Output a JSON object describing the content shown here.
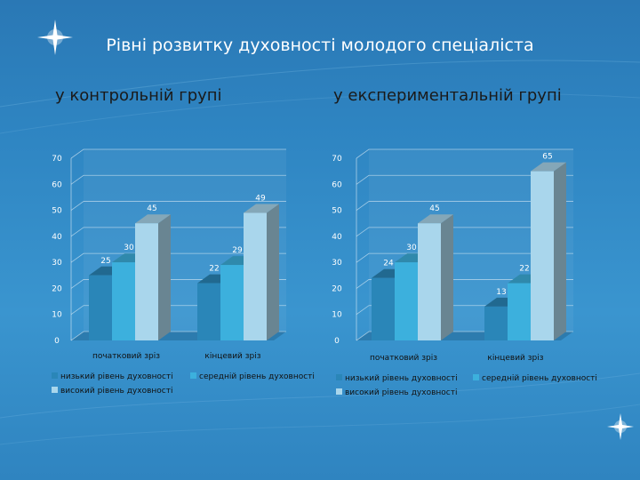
{
  "slide": {
    "title": "Рівні розвитку духовності молодого спеціаліста"
  },
  "colors": {
    "low": "#2a86b8",
    "medium": "#3cb0dd",
    "high": "#a9d6ec"
  },
  "chart_data": [
    {
      "type": "bar",
      "title": "у контрольній групі",
      "categories": [
        "початковий зріз",
        "кінцевий зріз"
      ],
      "series": [
        {
          "name": "низький рівень духовності",
          "values": [
            25,
            22
          ]
        },
        {
          "name": "середній рівень духовності",
          "values": [
            30,
            29
          ]
        },
        {
          "name": "високий рівень духовності",
          "values": [
            45,
            49
          ]
        }
      ],
      "ylim": [
        0,
        70
      ],
      "yticks": [
        0,
        10,
        20,
        30,
        40,
        50,
        60,
        70
      ],
      "grid": true,
      "legend_position": "bottom"
    },
    {
      "type": "bar",
      "title": "у експериментальній групі",
      "categories": [
        "початковий зріз",
        "кінцевий зріз"
      ],
      "series": [
        {
          "name": "низький рівень духовності",
          "values": [
            24,
            13
          ]
        },
        {
          "name": "середній рівень духовності",
          "values": [
            30,
            22
          ]
        },
        {
          "name": "високий рівень духовності",
          "values": [
            45,
            65
          ]
        }
      ],
      "ylim": [
        0,
        70
      ],
      "yticks": [
        0,
        10,
        20,
        30,
        40,
        50,
        60,
        70
      ],
      "grid": true,
      "legend_position": "bottom"
    }
  ]
}
